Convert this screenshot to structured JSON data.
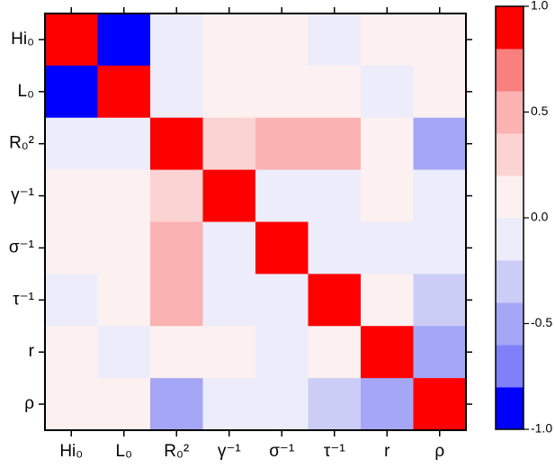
{
  "chart_data": {
    "type": "heatmap",
    "categories": [
      "Hi₀",
      "L₀",
      "R₀²",
      "γ⁻¹",
      "σ⁻¹",
      "τ⁻¹",
      "r",
      "ρ"
    ],
    "values": [
      [
        1,
        -1,
        -0.05,
        0.05,
        0.05,
        -0.05,
        0.05,
        0.05
      ],
      [
        -1,
        1,
        -0.05,
        0.05,
        0.05,
        0.05,
        -0.05,
        0.05
      ],
      [
        -0.05,
        -0.05,
        1,
        0.3,
        0.45,
        0.45,
        0.05,
        -0.5
      ],
      [
        0.05,
        0.05,
        0.3,
        1,
        -0.05,
        -0.05,
        0.05,
        -0.05
      ],
      [
        0.05,
        0.05,
        0.45,
        -0.05,
        1,
        -0.05,
        -0.05,
        -0.05
      ],
      [
        -0.05,
        0.05,
        0.45,
        -0.05,
        -0.05,
        1,
        0.05,
        -0.3
      ],
      [
        0.05,
        -0.05,
        0.05,
        0.05,
        -0.05,
        0.05,
        1,
        -0.5
      ],
      [
        0.05,
        0.05,
        -0.5,
        -0.05,
        -0.05,
        -0.3,
        -0.5,
        1
      ]
    ],
    "clim": [
      -1,
      1
    ],
    "levels": [
      -1,
      -0.8,
      -0.6,
      -0.4,
      -0.2,
      0,
      0.2,
      0.4,
      0.6,
      0.8,
      1
    ],
    "colors": [
      "#0000ff",
      "#8080fb",
      "#a6a6f6",
      "#cccdf6",
      "#ececfa",
      "#fdf0f0",
      "#fcd3d3",
      "#fbb2b2",
      "#fa8080",
      "#ff0000"
    ],
    "cticks": [
      {
        "value": 1,
        "label": "1.0"
      },
      {
        "value": 0.5,
        "label": "0.5"
      },
      {
        "value": 0,
        "label": "0.0"
      },
      {
        "value": -0.5,
        "label": "-0.5"
      },
      {
        "value": -1,
        "label": "-1.0"
      }
    ]
  }
}
